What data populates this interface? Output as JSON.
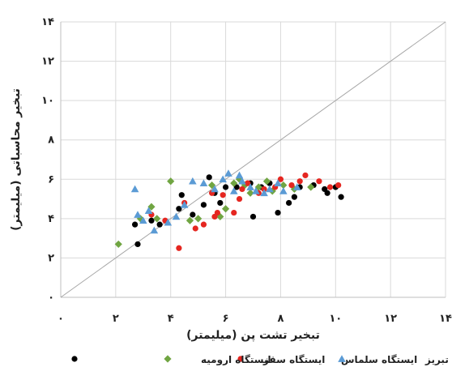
{
  "chart_data": {
    "type": "scatter",
    "title": "",
    "xlabel": "تبخیر تشت پن (میلیمتر)",
    "ylabel": "تبخیر محاسباتی (میلیمتر)",
    "xlim": [
      0,
      14
    ],
    "ylim": [
      0,
      14
    ],
    "xticks": [
      0,
      2,
      4,
      6,
      8,
      10,
      12,
      14
    ],
    "yticks": [
      0,
      2,
      4,
      6,
      8,
      10,
      12,
      14
    ],
    "x_tick_labels": [
      "۰",
      "۲",
      "۴",
      "۶",
      "۸",
      "۱۰",
      "۱۲",
      "۱۴"
    ],
    "y_tick_labels": [
      "۰",
      "۲",
      "۴",
      "۶",
      "۸",
      "۱۰",
      "۱۲",
      "۱۴"
    ],
    "grid": true,
    "reference_line": "1:1",
    "legend_position": "bottom",
    "series": [
      {
        "name": "ایستگاه تبریز",
        "marker": "circle",
        "color": "#000000",
        "points": [
          [
            2.7,
            3.7
          ],
          [
            2.8,
            2.7
          ],
          [
            3.3,
            3.9
          ],
          [
            3.6,
            3.7
          ],
          [
            4.3,
            4.5
          ],
          [
            4.4,
            5.2
          ],
          [
            4.8,
            4.2
          ],
          [
            5.2,
            4.7
          ],
          [
            5.4,
            6.1
          ],
          [
            5.6,
            5.3
          ],
          [
            5.8,
            4.8
          ],
          [
            6.0,
            5.6
          ],
          [
            6.4,
            5.6
          ],
          [
            6.9,
            5.8
          ],
          [
            7.0,
            4.1
          ],
          [
            7.3,
            5.6
          ],
          [
            7.6,
            5.8
          ],
          [
            7.9,
            4.3
          ],
          [
            8.3,
            4.8
          ],
          [
            8.5,
            5.1
          ],
          [
            8.7,
            5.6
          ],
          [
            9.2,
            5.7
          ],
          [
            9.6,
            5.5
          ],
          [
            9.7,
            5.3
          ],
          [
            10.0,
            5.6
          ],
          [
            10.2,
            5.1
          ]
        ]
      },
      {
        "name": "ایستگاه سلماس",
        "marker": "diamond",
        "color": "#70a542",
        "points": [
          [
            2.1,
            2.7
          ],
          [
            2.9,
            4.0
          ],
          [
            3.3,
            4.6
          ],
          [
            3.5,
            4.0
          ],
          [
            4.0,
            5.9
          ],
          [
            4.7,
            3.9
          ],
          [
            5.0,
            4.0
          ],
          [
            5.5,
            5.7
          ],
          [
            5.8,
            4.1
          ],
          [
            6.0,
            4.5
          ],
          [
            6.3,
            5.8
          ],
          [
            6.5,
            6.0
          ],
          [
            6.7,
            5.7
          ],
          [
            6.9,
            5.3
          ],
          [
            7.2,
            5.6
          ],
          [
            7.5,
            5.9
          ],
          [
            7.7,
            5.4
          ],
          [
            8.1,
            5.7
          ],
          [
            8.5,
            5.5
          ],
          [
            9.1,
            5.6
          ]
        ]
      },
      {
        "name": "ایستگاه سقز",
        "marker": "circle",
        "color": "#e52620",
        "points": [
          [
            3.3,
            4.2
          ],
          [
            3.8,
            3.9
          ],
          [
            4.3,
            2.5
          ],
          [
            4.5,
            4.8
          ],
          [
            4.9,
            3.5
          ],
          [
            5.2,
            3.7
          ],
          [
            5.6,
            4.1
          ],
          [
            5.7,
            4.3
          ],
          [
            5.5,
            5.3
          ],
          [
            5.9,
            5.2
          ],
          [
            6.3,
            4.3
          ],
          [
            6.5,
            5.0
          ],
          [
            6.6,
            5.5
          ],
          [
            6.8,
            5.8
          ],
          [
            7.2,
            5.3
          ],
          [
            7.4,
            5.5
          ],
          [
            7.8,
            5.6
          ],
          [
            8.0,
            6.0
          ],
          [
            8.4,
            5.7
          ],
          [
            8.7,
            5.9
          ],
          [
            8.9,
            6.2
          ],
          [
            9.4,
            5.9
          ],
          [
            9.8,
            5.6
          ],
          [
            10.1,
            5.7
          ]
        ]
      },
      {
        "name": "ایستگاه ارومیه",
        "marker": "triangle",
        "color": "#5b9bd5",
        "points": [
          [
            2.7,
            5.5
          ],
          [
            2.8,
            4.2
          ],
          [
            3.0,
            3.9
          ],
          [
            3.2,
            4.4
          ],
          [
            3.4,
            3.4
          ],
          [
            3.9,
            3.8
          ],
          [
            4.2,
            4.1
          ],
          [
            4.5,
            4.7
          ],
          [
            4.8,
            5.9
          ],
          [
            5.2,
            5.8
          ],
          [
            5.6,
            5.5
          ],
          [
            5.9,
            6.0
          ],
          [
            6.1,
            6.3
          ],
          [
            6.3,
            5.4
          ],
          [
            6.5,
            6.2
          ],
          [
            6.6,
            5.9
          ],
          [
            6.9,
            5.6
          ],
          [
            7.1,
            5.4
          ],
          [
            7.4,
            5.3
          ],
          [
            7.6,
            5.5
          ],
          [
            7.9,
            5.8
          ],
          [
            8.1,
            5.4
          ],
          [
            8.6,
            5.6
          ]
        ]
      }
    ]
  }
}
